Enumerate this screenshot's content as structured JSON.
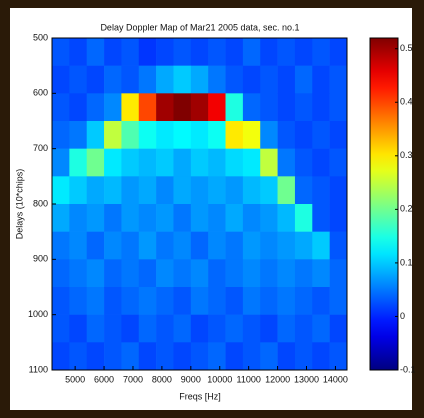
{
  "chart_data": {
    "type": "heatmap",
    "title": "Delay Doppler Map of Mar21 2005 data, sec. no.1",
    "x_label": "Freqs [Hz]",
    "y_label": "Delays (10*chips)",
    "colormap": "jet",
    "y_reversed": true,
    "x": [
      4500,
      5100,
      5700,
      6300,
      6900,
      7500,
      8100,
      8700,
      9300,
      9900,
      10500,
      11100,
      11700,
      12300,
      12900,
      13500,
      14100
    ],
    "y": [
      525,
      575,
      625,
      675,
      725,
      775,
      825,
      875,
      925,
      975,
      1025,
      1075
    ],
    "values": [
      [
        0.03,
        0.02,
        0.04,
        0.02,
        0.03,
        0.01,
        0.02,
        0.03,
        0.02,
        0.03,
        0.02,
        0.04,
        0.02,
        0.03,
        0.02,
        0.03,
        0.02
      ],
      [
        0.02,
        0.03,
        0.02,
        0.04,
        0.03,
        0.05,
        0.08,
        0.1,
        0.08,
        0.05,
        0.03,
        0.02,
        0.03,
        0.02,
        0.04,
        0.02,
        0.03
      ],
      [
        0.03,
        0.02,
        0.04,
        0.06,
        0.3,
        0.4,
        0.5,
        0.52,
        0.5,
        0.45,
        0.15,
        0.04,
        0.03,
        0.02,
        0.03,
        0.02,
        0.03
      ],
      [
        0.04,
        0.05,
        0.1,
        0.25,
        0.18,
        0.14,
        0.12,
        0.13,
        0.12,
        0.14,
        0.3,
        0.28,
        0.06,
        0.03,
        0.02,
        0.03,
        0.02
      ],
      [
        0.06,
        0.15,
        0.2,
        0.12,
        0.1,
        0.09,
        0.1,
        0.08,
        0.1,
        0.09,
        0.11,
        0.12,
        0.25,
        0.05,
        0.03,
        0.02,
        0.03
      ],
      [
        0.12,
        0.1,
        0.08,
        0.09,
        0.07,
        0.08,
        0.06,
        0.08,
        0.07,
        0.08,
        0.07,
        0.09,
        0.1,
        0.2,
        0.04,
        0.03,
        0.02
      ],
      [
        0.08,
        0.06,
        0.07,
        0.05,
        0.07,
        0.06,
        0.07,
        0.05,
        0.07,
        0.06,
        0.08,
        0.06,
        0.07,
        0.09,
        0.15,
        0.03,
        0.02
      ],
      [
        0.05,
        0.06,
        0.04,
        0.06,
        0.05,
        0.07,
        0.05,
        0.06,
        0.04,
        0.06,
        0.05,
        0.07,
        0.06,
        0.07,
        0.08,
        0.1,
        0.03
      ],
      [
        0.04,
        0.05,
        0.06,
        0.04,
        0.05,
        0.04,
        0.06,
        0.05,
        0.06,
        0.04,
        0.05,
        0.06,
        0.05,
        0.06,
        0.05,
        0.06,
        0.04
      ],
      [
        0.03,
        0.04,
        0.05,
        0.03,
        0.04,
        0.05,
        0.04,
        0.03,
        0.05,
        0.04,
        0.03,
        0.05,
        0.04,
        0.05,
        0.04,
        0.03,
        0.04
      ],
      [
        0.03,
        0.02,
        0.04,
        0.03,
        0.02,
        0.04,
        0.03,
        0.04,
        0.02,
        0.03,
        0.04,
        0.03,
        0.02,
        0.04,
        0.03,
        0.04,
        0.02
      ],
      [
        0.02,
        0.03,
        0.02,
        0.03,
        0.04,
        0.02,
        0.03,
        0.02,
        0.03,
        0.04,
        0.02,
        0.03,
        0.04,
        0.02,
        0.03,
        0.02,
        0.03
      ]
    ],
    "xlim": [
      4200,
      14400
    ],
    "ylim": [
      500,
      1100
    ],
    "xticks": [
      5000,
      6000,
      7000,
      8000,
      9000,
      10000,
      11000,
      12000,
      13000,
      14000
    ],
    "yticks": [
      500,
      600,
      700,
      800,
      900,
      1000,
      1100
    ],
    "zlim": [
      -0.1,
      0.52
    ],
    "zticks": [
      -0.1,
      0,
      0.1,
      0.2,
      0.3,
      0.4,
      0.5
    ]
  }
}
